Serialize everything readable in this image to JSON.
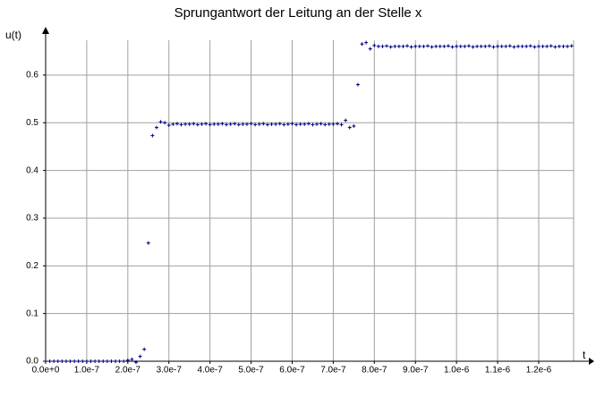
{
  "chart_data": {
    "type": "scatter",
    "title": "Sprungantwort der Leitung an der Stelle x",
    "x_label": "t",
    "y_label": "u(t)",
    "xlim": [
      0,
      1.285e-06
    ],
    "ylim": [
      0,
      0.673
    ],
    "xticks": [
      {
        "value": 0,
        "label": "0.0e+0"
      },
      {
        "value": 1e-07,
        "label": "1.0e-7"
      },
      {
        "value": 2e-07,
        "label": "2.0e-7"
      },
      {
        "value": 3e-07,
        "label": "3.0e-7"
      },
      {
        "value": 4e-07,
        "label": "4.0e-7"
      },
      {
        "value": 5e-07,
        "label": "5.0e-7"
      },
      {
        "value": 6e-07,
        "label": "6.0e-7"
      },
      {
        "value": 7e-07,
        "label": "7.0e-7"
      },
      {
        "value": 8e-07,
        "label": "8.0e-7"
      },
      {
        "value": 9e-07,
        "label": "9.0e-7"
      },
      {
        "value": 1e-06,
        "label": "1.0e-6"
      },
      {
        "value": 1.1e-06,
        "label": "1.1e-6"
      },
      {
        "value": 1.2e-06,
        "label": "1.2e-6"
      }
    ],
    "yticks": [
      {
        "value": 0,
        "label": "0.0"
      },
      0.1,
      0.2,
      0.3,
      0.4,
      0.5,
      0.6
    ],
    "grid": true,
    "grid_color": "#a0a0a0",
    "series": [
      {
        "color": "#000080",
        "x": [
          0,
          1e-08,
          2e-08,
          3e-08,
          4e-08,
          5e-08,
          6e-08,
          7e-08,
          8e-08,
          9e-08,
          1e-07,
          1.1e-07,
          1.2e-07,
          1.3e-07,
          1.4e-07,
          1.5e-07,
          1.6e-07,
          1.7e-07,
          1.8e-07,
          1.9e-07,
          2e-07,
          2.1e-07,
          2.2e-07,
          2.3e-07,
          2.4e-07,
          2.5e-07,
          2.6e-07,
          2.7e-07,
          2.8e-07,
          2.9e-07,
          3e-07,
          3.1e-07,
          3.2e-07,
          3.3e-07,
          3.4e-07,
          3.5e-07,
          3.6e-07,
          3.7e-07,
          3.8e-07,
          3.9e-07,
          4e-07,
          4.1e-07,
          4.2e-07,
          4.3e-07,
          4.4e-07,
          4.5e-07,
          4.6e-07,
          4.7e-07,
          4.8e-07,
          4.9e-07,
          5e-07,
          5.1e-07,
          5.2e-07,
          5.3e-07,
          5.4e-07,
          5.5e-07,
          5.6e-07,
          5.7e-07,
          5.8e-07,
          5.9e-07,
          6e-07,
          6.1e-07,
          6.2e-07,
          6.3e-07,
          6.4e-07,
          6.5e-07,
          6.6e-07,
          6.7e-07,
          6.8e-07,
          6.9e-07,
          7e-07,
          7.1e-07,
          7.2e-07,
          7.3e-07,
          7.4e-07,
          7.5e-07,
          7.6e-07,
          7.7e-07,
          7.8e-07,
          7.9e-07,
          8e-07,
          8.1e-07,
          8.2e-07,
          8.3e-07,
          8.4e-07,
          8.5e-07,
          8.6e-07,
          8.7e-07,
          8.8e-07,
          8.9e-07,
          9e-07,
          9.1e-07,
          9.2e-07,
          9.3e-07,
          9.4e-07,
          9.5e-07,
          9.6e-07,
          9.7e-07,
          9.8e-07,
          9.9e-07,
          1e-06,
          1.01e-06,
          1.02e-06,
          1.03e-06,
          1.04e-06,
          1.05e-06,
          1.06e-06,
          1.07e-06,
          1.08e-06,
          1.09e-06,
          1.1e-06,
          1.11e-06,
          1.12e-06,
          1.13e-06,
          1.14e-06,
          1.15e-06,
          1.16e-06,
          1.17e-06,
          1.18e-06,
          1.19e-06,
          1.2e-06,
          1.21e-06,
          1.22e-06,
          1.23e-06,
          1.24e-06,
          1.25e-06,
          1.26e-06,
          1.27e-06,
          1.28e-06
        ],
        "values": [
          0,
          0,
          0,
          0,
          0,
          0,
          0,
          0,
          0,
          0,
          0,
          0,
          0,
          0,
          0,
          0,
          0,
          0,
          0,
          0,
          0.002,
          0.004,
          -0.002,
          0.01,
          0.025,
          0.248,
          0.473,
          0.49,
          0.502,
          0.5,
          0.495,
          0.497,
          0.498,
          0.496,
          0.497,
          0.497,
          0.498,
          0.496,
          0.497,
          0.498,
          0.496,
          0.497,
          0.497,
          0.498,
          0.496,
          0.497,
          0.498,
          0.496,
          0.497,
          0.497,
          0.498,
          0.496,
          0.497,
          0.498,
          0.496,
          0.497,
          0.497,
          0.498,
          0.496,
          0.497,
          0.498,
          0.496,
          0.497,
          0.497,
          0.498,
          0.496,
          0.497,
          0.498,
          0.496,
          0.497,
          0.497,
          0.498,
          0.496,
          0.505,
          0.49,
          0.493,
          0.58,
          0.665,
          0.668,
          0.655,
          0.662,
          0.66,
          0.66,
          0.661,
          0.659,
          0.66,
          0.66,
          0.66,
          0.661,
          0.659,
          0.66,
          0.66,
          0.66,
          0.661,
          0.659,
          0.66,
          0.66,
          0.66,
          0.661,
          0.659,
          0.66,
          0.66,
          0.66,
          0.661,
          0.659,
          0.66,
          0.66,
          0.66,
          0.661,
          0.659,
          0.66,
          0.66,
          0.66,
          0.661,
          0.659,
          0.66,
          0.66,
          0.66,
          0.661,
          0.659,
          0.66,
          0.66,
          0.66,
          0.661,
          0.659,
          0.66,
          0.66,
          0.66,
          0.661
        ]
      }
    ]
  }
}
